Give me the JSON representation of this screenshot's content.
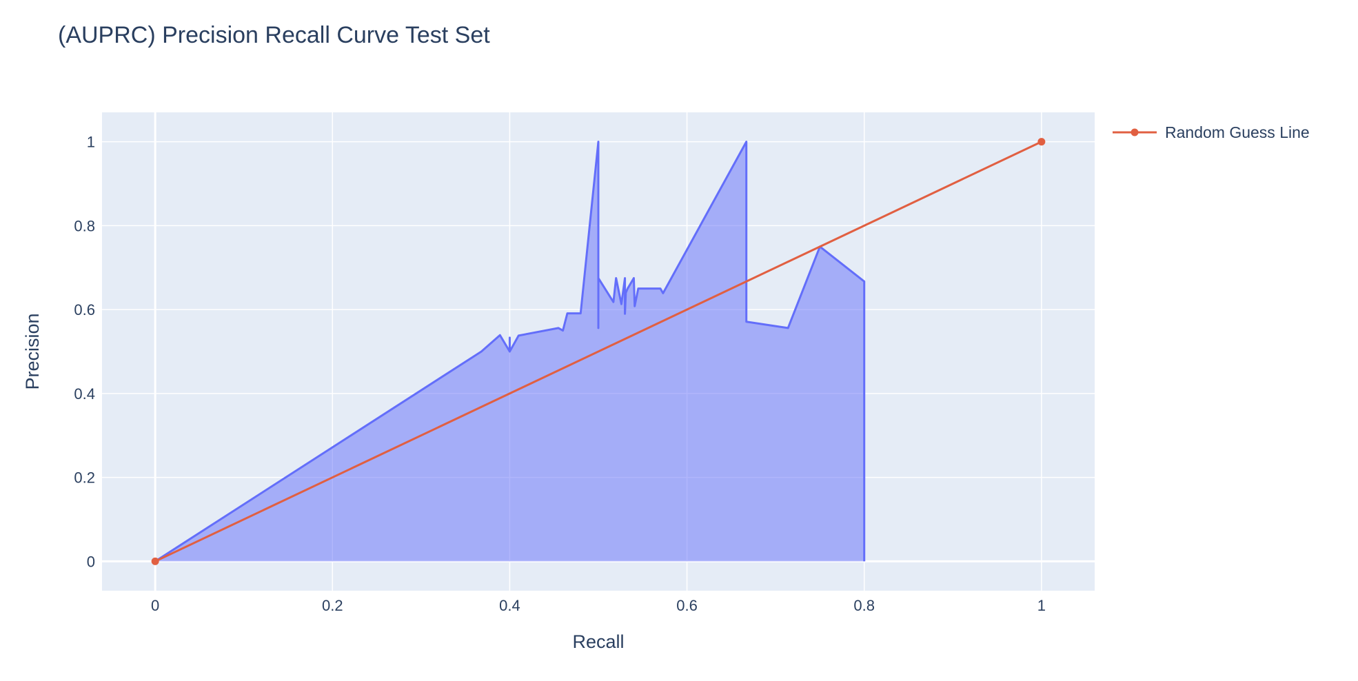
{
  "chart_data": {
    "type": "area",
    "title": "(AUPRC) Precision Recall Curve Test Set",
    "xlabel": "Recall",
    "ylabel": "Precision",
    "xlim": [
      -0.06,
      1.06
    ],
    "ylim": [
      -0.07,
      1.07
    ],
    "x_ticks": [
      0,
      0.2,
      0.4,
      0.6,
      0.8,
      1
    ],
    "x_tick_labels": [
      "0",
      "0.2",
      "0.4",
      "0.6",
      "0.8",
      "1"
    ],
    "y_ticks": [
      0,
      0.2,
      0.4,
      0.6,
      0.8,
      1
    ],
    "y_tick_labels": [
      "0",
      "0.2",
      "0.4",
      "0.6",
      "0.8",
      "1"
    ],
    "grid": true,
    "legend_position": "top-right",
    "series": [
      {
        "mode": "lines",
        "fill": "tozeroy",
        "color": "#636efa",
        "fill_color": "rgba(99,110,250,0.5)",
        "show_in_legend": false,
        "x": [
          0,
          0.368,
          0.389,
          0.4,
          0.4,
          0.4,
          0.41,
          0.455,
          0.46,
          0.465,
          0.48,
          0.5,
          0.5,
          0.5,
          0.5,
          0.517,
          0.52,
          0.526,
          0.53,
          0.53,
          0.531,
          0.533,
          0.54,
          0.541,
          0.545,
          0.56,
          0.57,
          0.573,
          0.667,
          0.667,
          0.714,
          0.75,
          0.8,
          0.8
        ],
        "y": [
          0,
          0.5,
          0.539,
          0.5,
          0.533,
          0.5,
          0.538,
          0.556,
          0.55,
          0.591,
          0.591,
          1.0,
          0.556,
          0.675,
          0.675,
          0.618,
          0.675,
          0.613,
          0.675,
          0.59,
          0.64,
          0.65,
          0.675,
          0.608,
          0.65,
          0.65,
          0.65,
          0.639,
          1.0,
          0.571,
          0.556,
          0.75,
          0.667,
          0
        ]
      },
      {
        "name": "Random Guess Line",
        "mode": "lines+markers",
        "color": "#e15f41",
        "show_in_legend": true,
        "x": [
          0,
          1
        ],
        "y": [
          0,
          1
        ]
      }
    ]
  }
}
